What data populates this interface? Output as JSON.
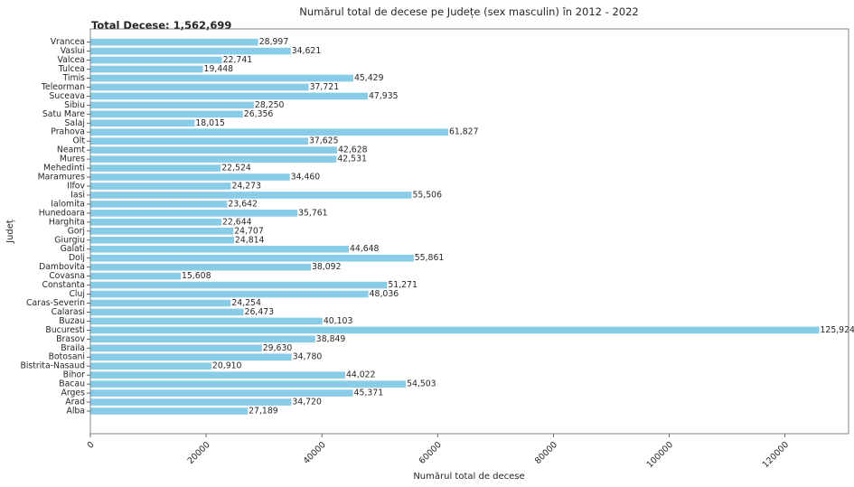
{
  "chart_data": {
    "type": "bar",
    "orientation": "horizontal",
    "title": "Numărul total de decese pe Județe (sex masculin) în 2012 - 2022",
    "xlabel": "Numărul total de decese",
    "ylabel": "Județ",
    "annotation": "Total Decese: 1,562,699",
    "annotation_color": "#e8191e",
    "bar_color": "#89cce8",
    "xlim": [
      0,
      131000
    ],
    "x_ticks": [
      0,
      20000,
      40000,
      60000,
      80000,
      100000,
      120000
    ],
    "categories": [
      "Alba",
      "Arad",
      "Arges",
      "Bacau",
      "Bihor",
      "Bistrita-Nasaud",
      "Botosani",
      "Braila",
      "Brasov",
      "Bucuresti",
      "Buzau",
      "Calarasi",
      "Caras-Severin",
      "Cluj",
      "Constanta",
      "Covasna",
      "Dambovita",
      "Dolj",
      "Galati",
      "Giurgiu",
      "Gorj",
      "Harghita",
      "Hunedoara",
      "Ialomita",
      "Iasi",
      "Ilfov",
      "Maramures",
      "Mehedinti",
      "Mures",
      "Neamt",
      "Olt",
      "Prahova",
      "Salaj",
      "Satu Mare",
      "Sibiu",
      "Suceava",
      "Teleorman",
      "Timis",
      "Tulcea",
      "Valcea",
      "Vaslui",
      "Vrancea"
    ],
    "values": [
      27189,
      34720,
      45371,
      54503,
      44022,
      20910,
      34780,
      29630,
      38849,
      125924,
      40103,
      26473,
      24254,
      48036,
      51271,
      15608,
      38092,
      55861,
      44648,
      24814,
      24707,
      22644,
      35761,
      23642,
      55506,
      24273,
      34460,
      22524,
      42531,
      42628,
      37625,
      61827,
      18015,
      26356,
      28250,
      47935,
      37721,
      45429,
      19448,
      22741,
      34621,
      28997
    ],
    "value_labels": [
      "27,189",
      "34,720",
      "45,371",
      "54,503",
      "44,022",
      "20,910",
      "34,780",
      "29,630",
      "38,849",
      "125,924",
      "40,103",
      "26,473",
      "24,254",
      "48,036",
      "51,271",
      "15,608",
      "38,092",
      "55,861",
      "44,648",
      "24,814",
      "24,707",
      "22,644",
      "35,761",
      "23,642",
      "55,506",
      "24,273",
      "34,460",
      "22,524",
      "42,531",
      "42,628",
      "37,625",
      "61,827",
      "18,015",
      "26,356",
      "28,250",
      "47,935",
      "37,721",
      "45,429",
      "19,448",
      "22,741",
      "34,621",
      "28,997"
    ]
  }
}
